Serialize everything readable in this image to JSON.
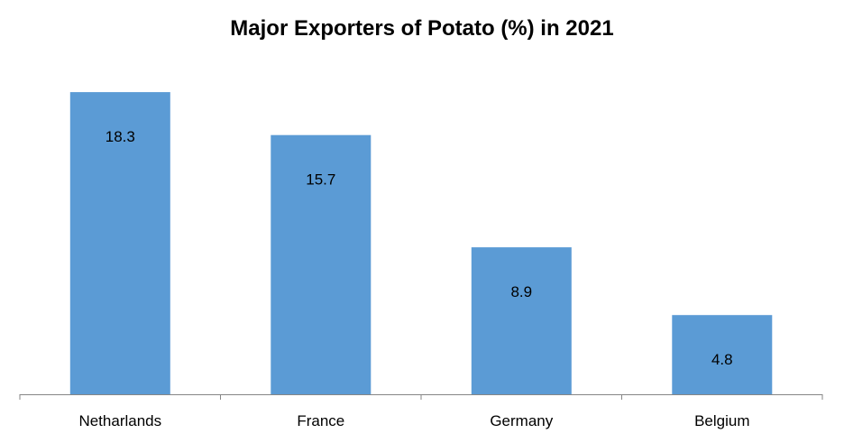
{
  "chart_data": {
    "type": "bar",
    "title": "Major Exporters of Potato (%) in 2021",
    "categories": [
      "Netharlands",
      "France",
      "Germany",
      "Belgium"
    ],
    "values": [
      18.3,
      15.7,
      8.9,
      4.8
    ],
    "value_labels": [
      "18.3",
      "15.7",
      "8.9",
      "4.8"
    ],
    "xlabel": "",
    "ylabel": "",
    "ylim": [
      0,
      20
    ],
    "grid": false,
    "legend": "none",
    "bar_color": "#5B9BD5",
    "axis_color": "#868686"
  }
}
